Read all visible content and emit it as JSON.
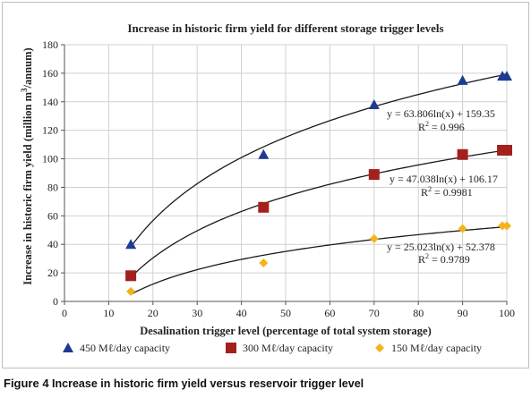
{
  "chart_data": {
    "type": "scatter",
    "title": "Increase in historic firm yield for different storage trigger levels",
    "xlabel": "Desalination trigger level (percentage of total system storage)",
    "ylabel_parts": {
      "main": "Increase in historic firm yield (million m",
      "sup": "3",
      "end": "/annum)"
    },
    "xlim": [
      0,
      100
    ],
    "ylim": [
      0,
      180
    ],
    "x_ticks": [
      0,
      10,
      20,
      30,
      40,
      50,
      60,
      70,
      80,
      90,
      100
    ],
    "y_ticks": [
      0,
      20,
      40,
      60,
      80,
      100,
      120,
      140,
      160,
      180
    ],
    "grid": true,
    "legend_position": "bottom",
    "series": [
      {
        "name": "450 Mℓ/day capacity",
        "marker": "triangle",
        "color": "#1f3a93",
        "points": [
          [
            15,
            40
          ],
          [
            45,
            103
          ],
          [
            70,
            138
          ],
          [
            90,
            155
          ],
          [
            99,
            158
          ],
          [
            100,
            158
          ]
        ],
        "trend": {
          "a": 63.806,
          "b": 159.35
        },
        "equation": "y = 63.806ln(x) + 159.35",
        "r2_label": "R",
        "r2_sup": "2",
        "r2_value": " = 0.996"
      },
      {
        "name": "300 Mℓ/day capacity",
        "marker": "square",
        "color": "#a3201c",
        "points": [
          [
            15,
            18
          ],
          [
            45,
            66
          ],
          [
            70,
            89
          ],
          [
            90,
            103
          ],
          [
            99,
            106
          ],
          [
            100,
            106
          ]
        ],
        "trend": {
          "a": 47.038,
          "b": 106.17
        },
        "equation": "y = 47.038ln(x) + 106.17",
        "r2_label": "R",
        "r2_sup": "2",
        "r2_value": " = 0.9981"
      },
      {
        "name": "150 Mℓ/day capacity",
        "marker": "diamond",
        "color": "#f5b31b",
        "points": [
          [
            15,
            7
          ],
          [
            45,
            27
          ],
          [
            70,
            44
          ],
          [
            90,
            51
          ],
          [
            99,
            53
          ],
          [
            100,
            53
          ]
        ],
        "trend": {
          "a": 25.023,
          "b": 52.378
        },
        "equation": "y = 25.023ln(x) + 52.378",
        "r2_label": "R",
        "r2_sup": "2",
        "r2_value": " = 0.9789"
      }
    ]
  },
  "caption": {
    "label": "Figure 4",
    "text": " Increase in historic firm yield versus reservoir trigger level"
  }
}
